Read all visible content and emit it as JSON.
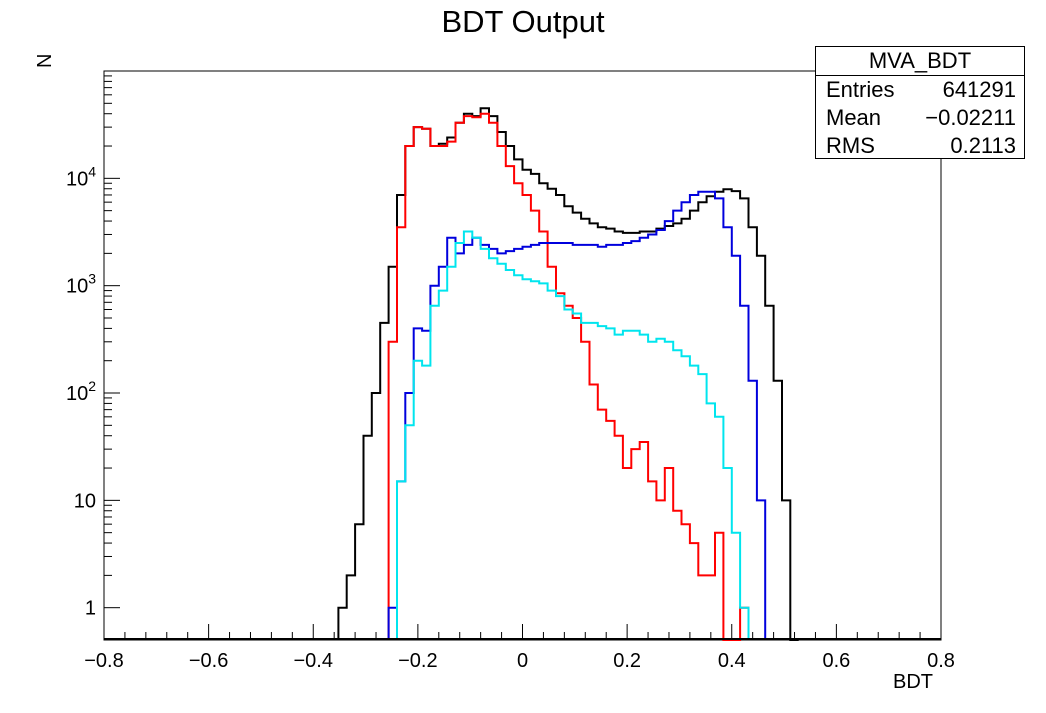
{
  "chart_data": {
    "type": "histogram",
    "title": "BDT Output",
    "xlabel": "BDT",
    "ylabel": "N",
    "xlim": [
      -0.8,
      0.8
    ],
    "ylim": [
      0.5,
      100000
    ],
    "yscale": "log",
    "grid": false,
    "x_ticks": [
      "−0.8",
      "−0.6",
      "−0.4",
      "−0.2",
      "0",
      "0.2",
      "0.4",
      "0.6",
      "0.8"
    ],
    "y_ticks": [
      {
        "value": 1,
        "label": "1"
      },
      {
        "value": 10,
        "label": "10"
      },
      {
        "value": 100,
        "label": "10",
        "exp": "2"
      },
      {
        "value": 1000,
        "label": "10",
        "exp": "3"
      },
      {
        "value": 10000,
        "label": "10",
        "exp": "4"
      }
    ],
    "bin_start": -0.8,
    "bin_width": 0.016,
    "series": [
      {
        "color": "#000000",
        "first_bin": 28,
        "values": [
          1,
          2,
          6,
          40,
          100,
          450,
          1500,
          7000,
          20000,
          30000,
          29000,
          20000,
          21000,
          24000,
          33000,
          40000,
          38000,
          45000,
          38000,
          27000,
          20000,
          15000,
          12000,
          11000,
          9000,
          8000,
          7000,
          5500,
          4800,
          4200,
          3800,
          3500,
          3400,
          3200,
          3100,
          3100,
          3200,
          3200,
          3400,
          3600,
          3800,
          4200,
          5000,
          6000,
          6800,
          7500,
          7900,
          7600,
          6500,
          3500,
          1900,
          650,
          130,
          10,
          0.3
        ]
      },
      {
        "color": "#ff0000",
        "first_bin": 34,
        "values": [
          300,
          3500,
          20000,
          30000,
          29000,
          20000,
          20000,
          22000,
          33000,
          38000,
          37000,
          40000,
          33000,
          20000,
          13000,
          9000,
          7000,
          5000,
          3200,
          1500,
          850,
          650,
          500,
          300,
          120,
          70,
          55,
          40,
          20,
          30,
          35,
          15,
          10,
          20,
          8,
          6,
          4,
          2,
          2,
          5,
          0.3,
          0.3,
          1
        ]
      },
      {
        "color": "#0000dd",
        "first_bin": 34,
        "values": [
          1,
          15,
          100,
          400,
          380,
          1000,
          1500,
          2800,
          2000,
          2400,
          2800,
          2400,
          2200,
          2000,
          2100,
          2200,
          2300,
          2400,
          2500,
          2500,
          2500,
          2500,
          2400,
          2400,
          2400,
          2300,
          2400,
          2400,
          2500,
          2600,
          2800,
          3000,
          3300,
          4000,
          5000,
          6000,
          7000,
          7500,
          7500,
          6500,
          3500,
          1900,
          650,
          130,
          10
        ]
      },
      {
        "color": "#00e5ee",
        "first_bin": 35,
        "values": [
          15,
          50,
          200,
          180,
          650,
          900,
          1500,
          2500,
          3200,
          2800,
          2200,
          1800,
          1600,
          1400,
          1250,
          1150,
          1100,
          1050,
          900,
          800,
          600,
          550,
          450,
          450,
          420,
          400,
          350,
          380,
          380,
          350,
          300,
          320,
          300,
          250,
          220,
          180,
          150,
          80,
          60,
          20,
          5,
          1
        ]
      }
    ]
  },
  "stats_box": {
    "title": "MVA_BDT",
    "rows": [
      {
        "key": "Entries",
        "value": "641291"
      },
      {
        "key": "Mean",
        "value": "−0.02211"
      },
      {
        "key": "RMS",
        "value": "0.2113"
      }
    ]
  }
}
